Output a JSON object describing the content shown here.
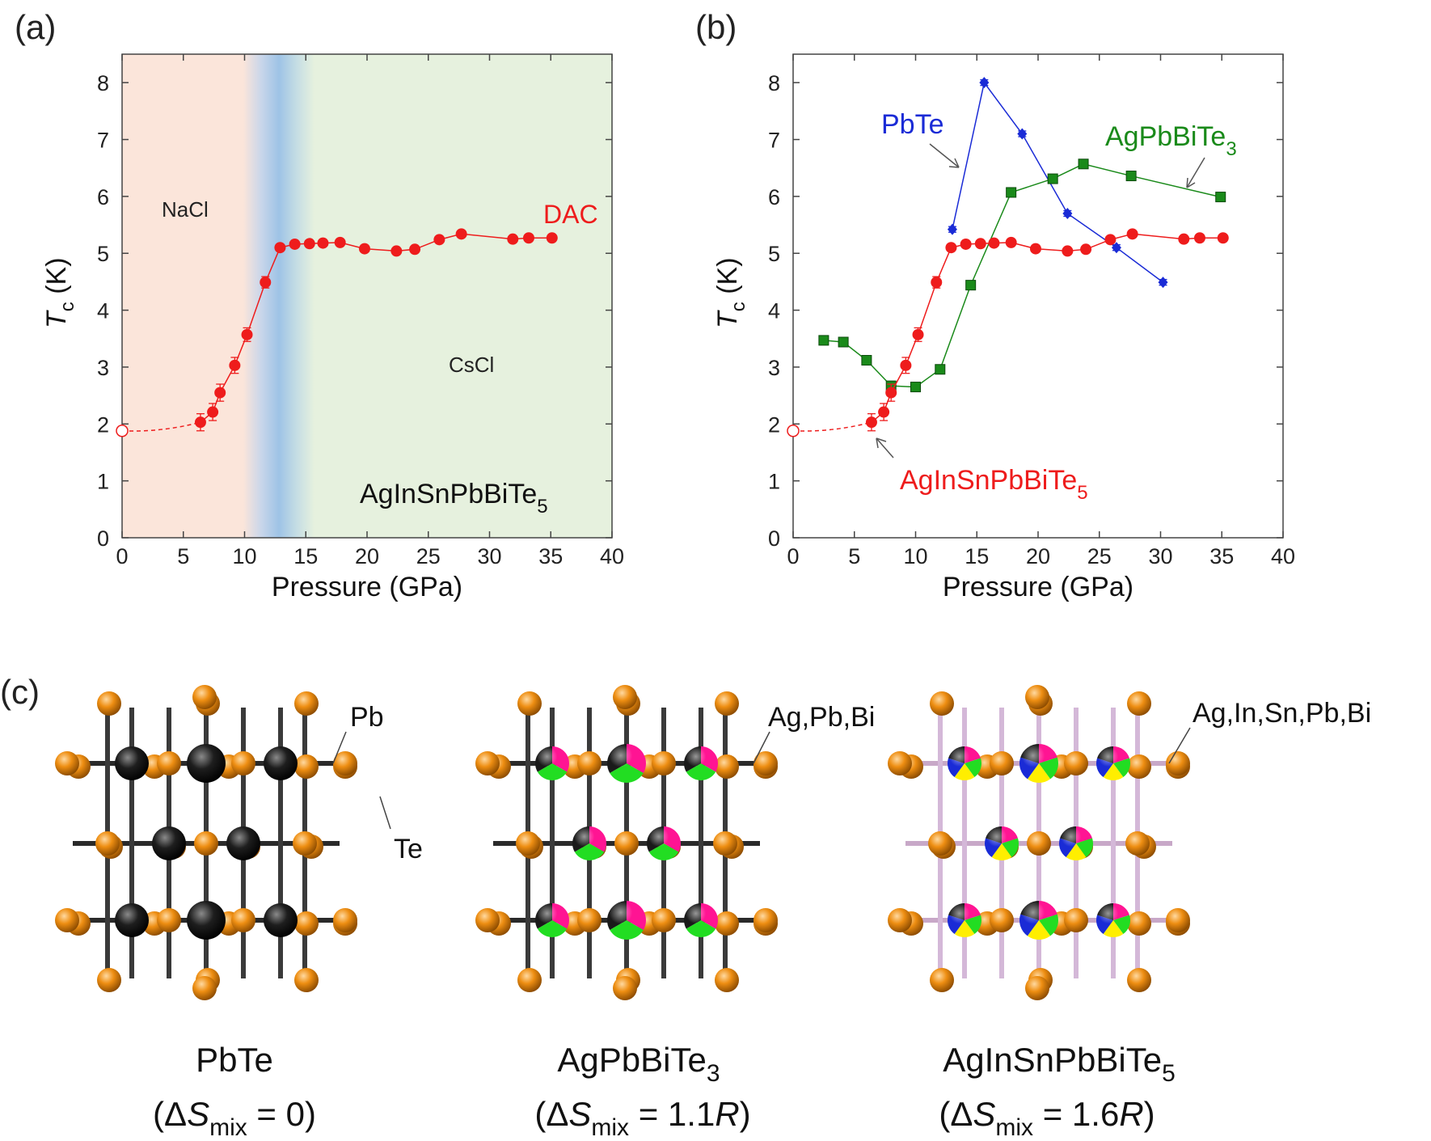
{
  "panels": {
    "a": {
      "label": "(a)",
      "region_labels": {
        "nacl": "NaCl",
        "cscl": "CsCl"
      },
      "series_label": "DAC",
      "compound": {
        "base": "AgInSnPbBiTe",
        "sub": "5"
      }
    },
    "b": {
      "label": "(b)",
      "labels": {
        "pbte": "PbTe",
        "agpbbite3": {
          "base": "AgPbBiTe",
          "sub": "3"
        },
        "aginsn": {
          "base": "AgInSnPbBiTe",
          "sub": "5"
        }
      }
    },
    "c": {
      "label": "(c)",
      "structures": [
        {
          "site_label": "Pb",
          "te_label": "Te",
          "name": {
            "base": "PbTe",
            "sub": ""
          },
          "entropy": {
            "open": "(Δ",
            "S": "S",
            "sub": "mix",
            "eq": " = 0",
            "R": "",
            "close": ")"
          }
        },
        {
          "site_label": "Ag,Pb,Bi",
          "name": {
            "base": "AgPbBiTe",
            "sub": "3"
          },
          "entropy": {
            "open": "(Δ",
            "S": "S",
            "sub": "mix",
            "eq": " = 1.1",
            "R": "R",
            "close": ")"
          }
        },
        {
          "site_label": "Ag,In,Sn,Pb,Bi",
          "name": {
            "base": "AgInSnPbBiTe",
            "sub": "5"
          },
          "entropy": {
            "open": "(Δ",
            "S": "S",
            "sub": "mix",
            "eq": " = 1.6",
            "R": "R",
            "close": ")"
          }
        }
      ]
    }
  },
  "colors": {
    "red": "#ee1c1c",
    "blue": "#1a2bd6",
    "green": "#1a8a1a",
    "nacl_bg": "#fbe5da",
    "cscl_bg": "#e6f1de",
    "transition": "#9ec3e6",
    "te_atom": "#e88a10",
    "pb_atom": "#1a1a1a",
    "ag_atom": "#ff1493",
    "bi_atom": "#22dd22",
    "in_atom": "#1a2bd6",
    "sn_atom": "#ffee00"
  },
  "chart_data": [
    {
      "type": "scatter",
      "panel": "a",
      "xlabel": "Pressure (GPa)",
      "ylabel": {
        "T": "T",
        "sub": "c",
        "unit": " (K)"
      },
      "xlim": [
        0,
        40
      ],
      "ylim": [
        0,
        8.5
      ],
      "xticks": [
        0,
        5,
        10,
        15,
        20,
        25,
        30,
        35,
        40
      ],
      "yticks": [
        0,
        1,
        2,
        3,
        4,
        5,
        6,
        7,
        8
      ],
      "regions": [
        {
          "name": "NaCl",
          "x": [
            0,
            11
          ]
        },
        {
          "name": "transition",
          "x": [
            11,
            15
          ]
        },
        {
          "name": "CsCl",
          "x": [
            15,
            40
          ]
        }
      ],
      "series": [
        {
          "name": "DAC",
          "color": "#ee1c1c",
          "open_point": [
            0,
            1.88
          ],
          "x": [
            6.4,
            7.4,
            8.0,
            9.2,
            10.2,
            11.7,
            12.9,
            14.1,
            15.3,
            16.4,
            17.8,
            19.8,
            22.4,
            23.9,
            25.9,
            27.7,
            31.9,
            33.2,
            35.1
          ],
          "y": [
            2.03,
            2.21,
            2.55,
            3.03,
            3.57,
            4.49,
            5.1,
            5.16,
            5.17,
            5.18,
            5.19,
            5.08,
            5.04,
            5.07,
            5.24,
            5.34,
            5.25,
            5.27,
            5.27
          ],
          "yerr": [
            0.15,
            0.15,
            0.15,
            0.14,
            0.12,
            0.1,
            0.06,
            0.05,
            0.05,
            0.05,
            0.05,
            0.05,
            0.05,
            0.05,
            0.05,
            0.05,
            0.05,
            0.05,
            0.05
          ]
        }
      ]
    },
    {
      "type": "scatter",
      "panel": "b",
      "xlabel": "Pressure (GPa)",
      "ylabel": {
        "T": "T",
        "sub": "c",
        "unit": " (K)"
      },
      "xlim": [
        0,
        40
      ],
      "ylim": [
        0,
        8.5
      ],
      "xticks": [
        0,
        5,
        10,
        15,
        20,
        25,
        30,
        35,
        40
      ],
      "yticks": [
        0,
        1,
        2,
        3,
        4,
        5,
        6,
        7,
        8
      ],
      "series": [
        {
          "name": "PbTe",
          "color": "#1a2bd6",
          "marker": "diamond",
          "x": [
            13.0,
            15.6,
            18.7,
            22.4,
            26.4,
            30.2
          ],
          "y": [
            5.42,
            8.0,
            7.1,
            5.7,
            5.1,
            4.49
          ],
          "yerr": [
            0.05,
            0.05,
            0.05,
            0.05,
            0.05,
            0.05
          ]
        },
        {
          "name": "AgPbBiTe3",
          "color": "#1a8a1a",
          "marker": "square",
          "x": [
            2.5,
            4.1,
            6.0,
            8.0,
            10.0,
            12.0,
            14.5,
            17.8,
            21.2,
            23.7,
            27.6,
            34.9
          ],
          "y": [
            3.47,
            3.44,
            3.12,
            2.67,
            2.65,
            2.96,
            4.44,
            6.07,
            6.31,
            6.57,
            6.36,
            5.99
          ],
          "yerr": [
            0.08,
            0.07,
            0.08,
            0.08,
            0.07,
            0.07,
            0.07,
            0.07,
            0.07,
            0.07,
            0.05,
            0.07
          ]
        },
        {
          "name": "AgInSnPbBiTe5",
          "color": "#ee1c1c",
          "marker": "circle",
          "open_point": [
            0,
            1.88
          ],
          "x": [
            6.4,
            7.4,
            8.0,
            9.2,
            10.2,
            11.7,
            12.9,
            14.1,
            15.3,
            16.4,
            17.8,
            19.8,
            22.4,
            23.9,
            25.9,
            27.7,
            31.9,
            33.2,
            35.1
          ],
          "y": [
            2.03,
            2.21,
            2.55,
            3.03,
            3.57,
            4.49,
            5.1,
            5.16,
            5.17,
            5.18,
            5.19,
            5.08,
            5.04,
            5.07,
            5.24,
            5.34,
            5.25,
            5.27,
            5.27
          ],
          "yerr": [
            0.15,
            0.15,
            0.15,
            0.14,
            0.12,
            0.1,
            0.06,
            0.05,
            0.05,
            0.05,
            0.05,
            0.05,
            0.05,
            0.05,
            0.05,
            0.05,
            0.05,
            0.05,
            0.05
          ]
        }
      ]
    }
  ]
}
